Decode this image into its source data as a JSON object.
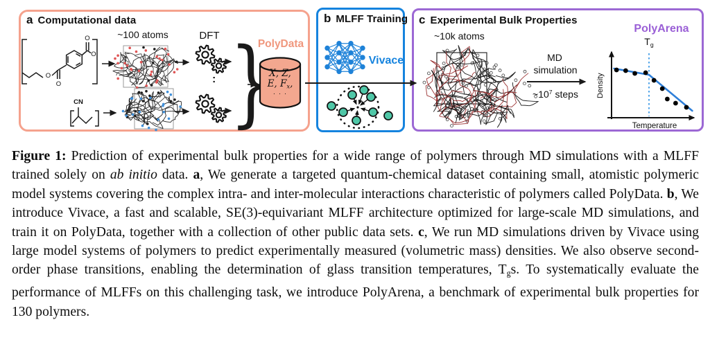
{
  "colors": {
    "panel-a-border": "#f5a28d",
    "panel-b-border": "#1583de",
    "panel-c-border": "#9c68d4",
    "polydata": "#f0977d",
    "polydata-fill": "#f3a78f",
    "vivace-blue": "#1583de",
    "nn-blue": "#1e82d8",
    "polyarena-purple": "#9a5fd6",
    "teal-node": "#4fc7a7",
    "plot-line": "#2e7fd9",
    "plot-dash": "#58a8ea"
  },
  "panel_a": {
    "label": "a",
    "title": "Computational data",
    "atoms_label": "~100 atoms",
    "dft_label": "DFT",
    "colon": ":",
    "brace": "}",
    "polydata_label": "PolyData",
    "cylinder_lines": {
      "line1": [
        {
          "t": "X, Z,",
          "i": true
        }
      ],
      "line2": [
        {
          "t": "E, F",
          "i": true
        },
        {
          "t": "x",
          "i": true,
          "sub": true
        },
        {
          "t": ",",
          "i": true
        }
      ],
      "line3": [
        {
          "t": "· · ·"
        }
      ]
    },
    "structures": {
      "oxygen_label": "O",
      "nitrile_label": "CN"
    }
  },
  "panel_b": {
    "label": "b",
    "title": "MLFF Training",
    "model_name": "Vivace"
  },
  "panel_c": {
    "label": "c",
    "title": "Experimental Bulk Properties",
    "atoms_label": "~10k atoms",
    "md_label_line1": "MD",
    "md_label_line2": "simulation",
    "md_steps": [
      {
        "t": "~10"
      },
      {
        "t": "7",
        "sup": true
      },
      {
        "t": " steps"
      }
    ],
    "benchmark_name": "PolyArena",
    "tg_label": [
      {
        "t": "T"
      },
      {
        "t": "g",
        "sub": true
      }
    ]
  },
  "chart_data": {
    "type": "line",
    "title": "Density vs Temperature schematic with glass transition",
    "xlabel": "Temperature",
    "ylabel": "Density",
    "axes_numeric": false,
    "annotation": "Tg marked by vertical dashed line at the slope change (kink) of the density curve",
    "tg_x_frac": 0.45,
    "segments": [
      [
        [
          0.03,
          0.71
        ],
        [
          0.45,
          0.62
        ]
      ],
      [
        [
          0.45,
          0.62
        ],
        [
          0.97,
          0.1
        ]
      ]
    ],
    "points": [
      [
        0.06,
        0.69
      ],
      [
        0.17,
        0.68
      ],
      [
        0.28,
        0.64
      ],
      [
        0.41,
        0.65
      ],
      [
        0.51,
        0.54
      ],
      [
        0.61,
        0.42
      ],
      [
        0.67,
        0.27
      ],
      [
        0.77,
        0.21
      ],
      [
        0.9,
        0.15
      ]
    ]
  },
  "caption": {
    "segments": [
      {
        "t": "Figure 1: ",
        "b": true
      },
      {
        "t": "Prediction of experimental bulk properties for a wide range of polymers through MD simulations with a MLFF trained solely on "
      },
      {
        "t": "ab initio",
        "i": true
      },
      {
        "t": " data. "
      },
      {
        "t": "a",
        "b": true
      },
      {
        "t": ", We generate a targeted quantum-chemical dataset containing small, atomistic polymeric model systems covering the complex intra- and inter-molecular interactions characteristic of polymers called PolyData. "
      },
      {
        "t": "b",
        "b": true
      },
      {
        "t": ", We introduce Vivace, a fast and scalable, SE(3)-equivariant MLFF architecture optimized for large-scale MD simulations, and train it on PolyData, together with a collection of other public data sets. "
      },
      {
        "t": "c",
        "b": true
      },
      {
        "t": ", We run MD simulations driven by Vivace using large model systems of polymers to predict experimentally measured (volumetric mass) densities. We also observe second-order phase transitions, enabling the determination of glass transition temperatures, T"
      },
      {
        "t": "g",
        "sub": true
      },
      {
        "t": "s. To systematically evaluate the performance of MLFFs on this challenging task, we introduce PolyArena, a benchmark of experimental bulk properties for 130 polymers."
      }
    ]
  }
}
